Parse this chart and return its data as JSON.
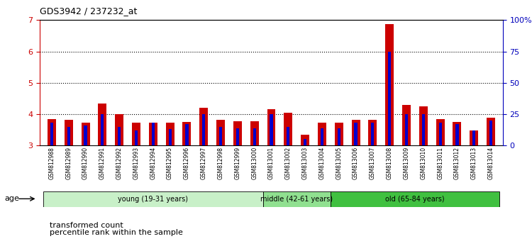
{
  "title": "GDS3942 / 237232_at",
  "samples": [
    "GSM812988",
    "GSM812989",
    "GSM812990",
    "GSM812991",
    "GSM812992",
    "GSM812993",
    "GSM812994",
    "GSM812995",
    "GSM812996",
    "GSM812997",
    "GSM812998",
    "GSM812999",
    "GSM813000",
    "GSM813001",
    "GSM813002",
    "GSM813003",
    "GSM813004",
    "GSM813005",
    "GSM813006",
    "GSM813007",
    "GSM813008",
    "GSM813009",
    "GSM813010",
    "GSM813011",
    "GSM813012",
    "GSM813013",
    "GSM813014"
  ],
  "red_values": [
    3.85,
    3.82,
    3.72,
    4.35,
    4.0,
    3.72,
    3.72,
    3.72,
    3.75,
    4.2,
    3.82,
    3.78,
    3.78,
    4.15,
    4.05,
    3.35,
    3.73,
    3.73,
    3.83,
    3.83,
    6.88,
    4.3,
    4.25,
    3.85,
    3.75,
    3.48,
    3.88
  ],
  "blue_values": [
    18,
    15,
    16,
    25,
    15,
    12,
    18,
    13,
    17,
    25,
    15,
    14,
    14,
    25,
    15,
    5,
    14,
    14,
    18,
    18,
    75,
    25,
    25,
    18,
    17,
    12,
    20
  ],
  "ylim_left": [
    3,
    7
  ],
  "ylim_right": [
    0,
    100
  ],
  "yticks_left": [
    3,
    4,
    5,
    6,
    7
  ],
  "yticks_right": [
    0,
    25,
    50,
    75,
    100
  ],
  "ytick_labels_right": [
    "0",
    "25",
    "50",
    "75",
    "100%"
  ],
  "age_groups": [
    {
      "label": "young (19-31 years)",
      "start": 0,
      "end": 13,
      "color": "#c8f0c8"
    },
    {
      "label": "middle (42-61 years)",
      "start": 13,
      "end": 17,
      "color": "#90e090"
    },
    {
      "label": "old (65-84 years)",
      "start": 17,
      "end": 27,
      "color": "#40c040"
    }
  ],
  "bar_width": 0.5,
  "red_color": "#cc0000",
  "blue_color": "#0000cc",
  "legend_red": "transformed count",
  "legend_blue": "percentile rank within the sample",
  "ylabel_left_color": "#cc0000",
  "ylabel_right_color": "#0000bb",
  "ybase": 3.0
}
